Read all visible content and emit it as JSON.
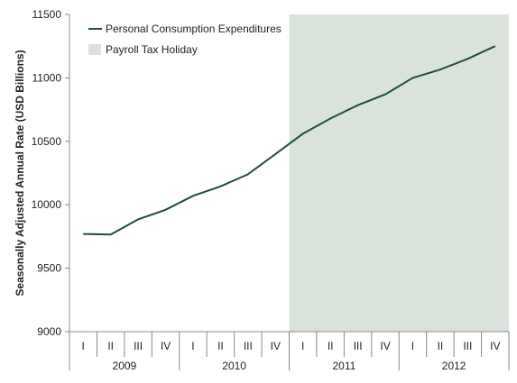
{
  "chart_data": {
    "type": "line",
    "ylabel": "Seasonally Adjusted Annual Rate (USD Billions)",
    "ylim": [
      9000,
      11500
    ],
    "yticks": [
      9000,
      9500,
      10000,
      10500,
      11000,
      11500
    ],
    "quarters": [
      "I",
      "II",
      "III",
      "IV",
      "I",
      "II",
      "III",
      "IV",
      "I",
      "II",
      "III",
      "IV",
      "I",
      "II",
      "III",
      "IV"
    ],
    "years": [
      "2009",
      "2010",
      "2011",
      "2012"
    ],
    "series": [
      {
        "name": "Personal Consumption Expenditures",
        "color": "#1f4f33",
        "values": [
          9770,
          9765,
          9885,
          9960,
          10070,
          10145,
          10240,
          10400,
          10560,
          10680,
          10785,
          10870,
          11000,
          11065,
          11150,
          11250
        ]
      }
    ],
    "shaded_region": {
      "label": "Payroll Tax Holiday",
      "color": "#d9e3dc",
      "start_index": 8,
      "end_index": 15
    },
    "legend": "top-left",
    "grid": false
  }
}
